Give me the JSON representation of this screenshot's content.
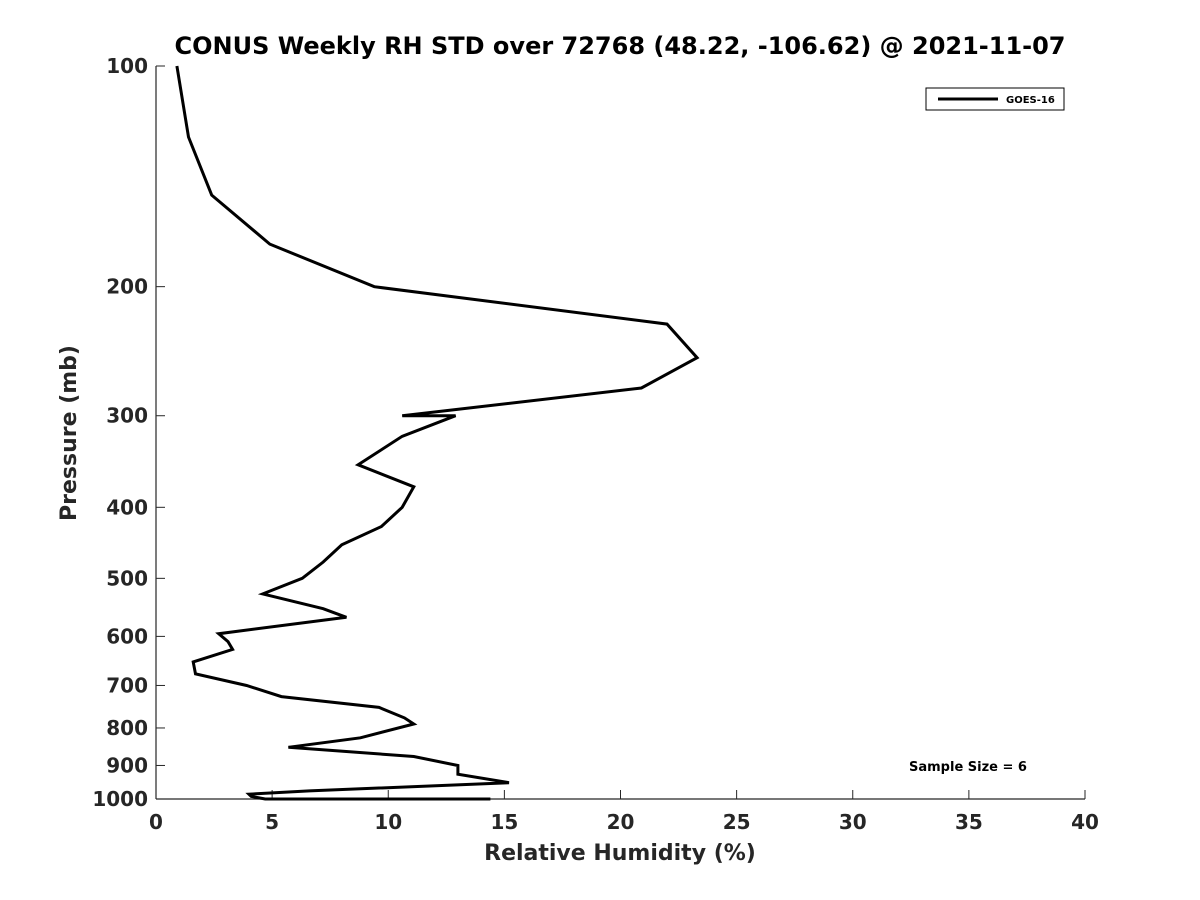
{
  "chart_data": {
    "type": "line",
    "title": "CONUS Weekly RH STD over 72768 (48.22, -106.62) @ 2021-11-07",
    "xlabel": "Relative Humidity (%)",
    "ylabel": "Pressure (mb)",
    "xlim": [
      0,
      40
    ],
    "ylim": [
      1000,
      100
    ],
    "yscale": "log",
    "y_reversed": true,
    "x_ticks": [
      "0",
      "5",
      "10",
      "15",
      "20",
      "25",
      "30",
      "35",
      "40"
    ],
    "y_ticks": [
      "100",
      "200",
      "300",
      "400",
      "500",
      "600",
      "700",
      "800",
      "900",
      "1000"
    ],
    "grid": false,
    "legend_position": "top-right",
    "series": [
      {
        "name": "GOES-16",
        "color": "#000000",
        "points": [
          [
            0.9,
            100
          ],
          [
            1.4,
            125
          ],
          [
            2.4,
            150
          ],
          [
            4.9,
            175
          ],
          [
            9.4,
            200
          ],
          [
            22.0,
            225
          ],
          [
            23.3,
            250
          ],
          [
            20.9,
            275
          ],
          [
            10.6,
            300
          ],
          [
            12.9,
            300
          ],
          [
            10.6,
            320
          ],
          [
            8.7,
            350
          ],
          [
            11.1,
            375
          ],
          [
            10.6,
            400
          ],
          [
            9.7,
            425
          ],
          [
            8.0,
            450
          ],
          [
            7.2,
            475
          ],
          [
            6.3,
            500
          ],
          [
            4.6,
            525
          ],
          [
            7.2,
            550
          ],
          [
            8.2,
            565
          ],
          [
            2.7,
            595
          ],
          [
            3.1,
            610
          ],
          [
            3.3,
            625
          ],
          [
            1.6,
            650
          ],
          [
            1.7,
            675
          ],
          [
            3.9,
            700
          ],
          [
            5.4,
            725
          ],
          [
            9.6,
            750
          ],
          [
            10.7,
            775
          ],
          [
            11.1,
            790
          ],
          [
            8.8,
            825
          ],
          [
            5.7,
            850
          ],
          [
            11.1,
            875
          ],
          [
            13.0,
            900
          ],
          [
            13.0,
            925
          ],
          [
            15.2,
            950
          ],
          [
            6.6,
            975
          ],
          [
            4.0,
            985
          ],
          [
            4.1,
            992
          ],
          [
            4.7,
            1000
          ],
          [
            14.4,
            1000
          ]
        ]
      }
    ],
    "annotation": "Sample Size = 6"
  }
}
